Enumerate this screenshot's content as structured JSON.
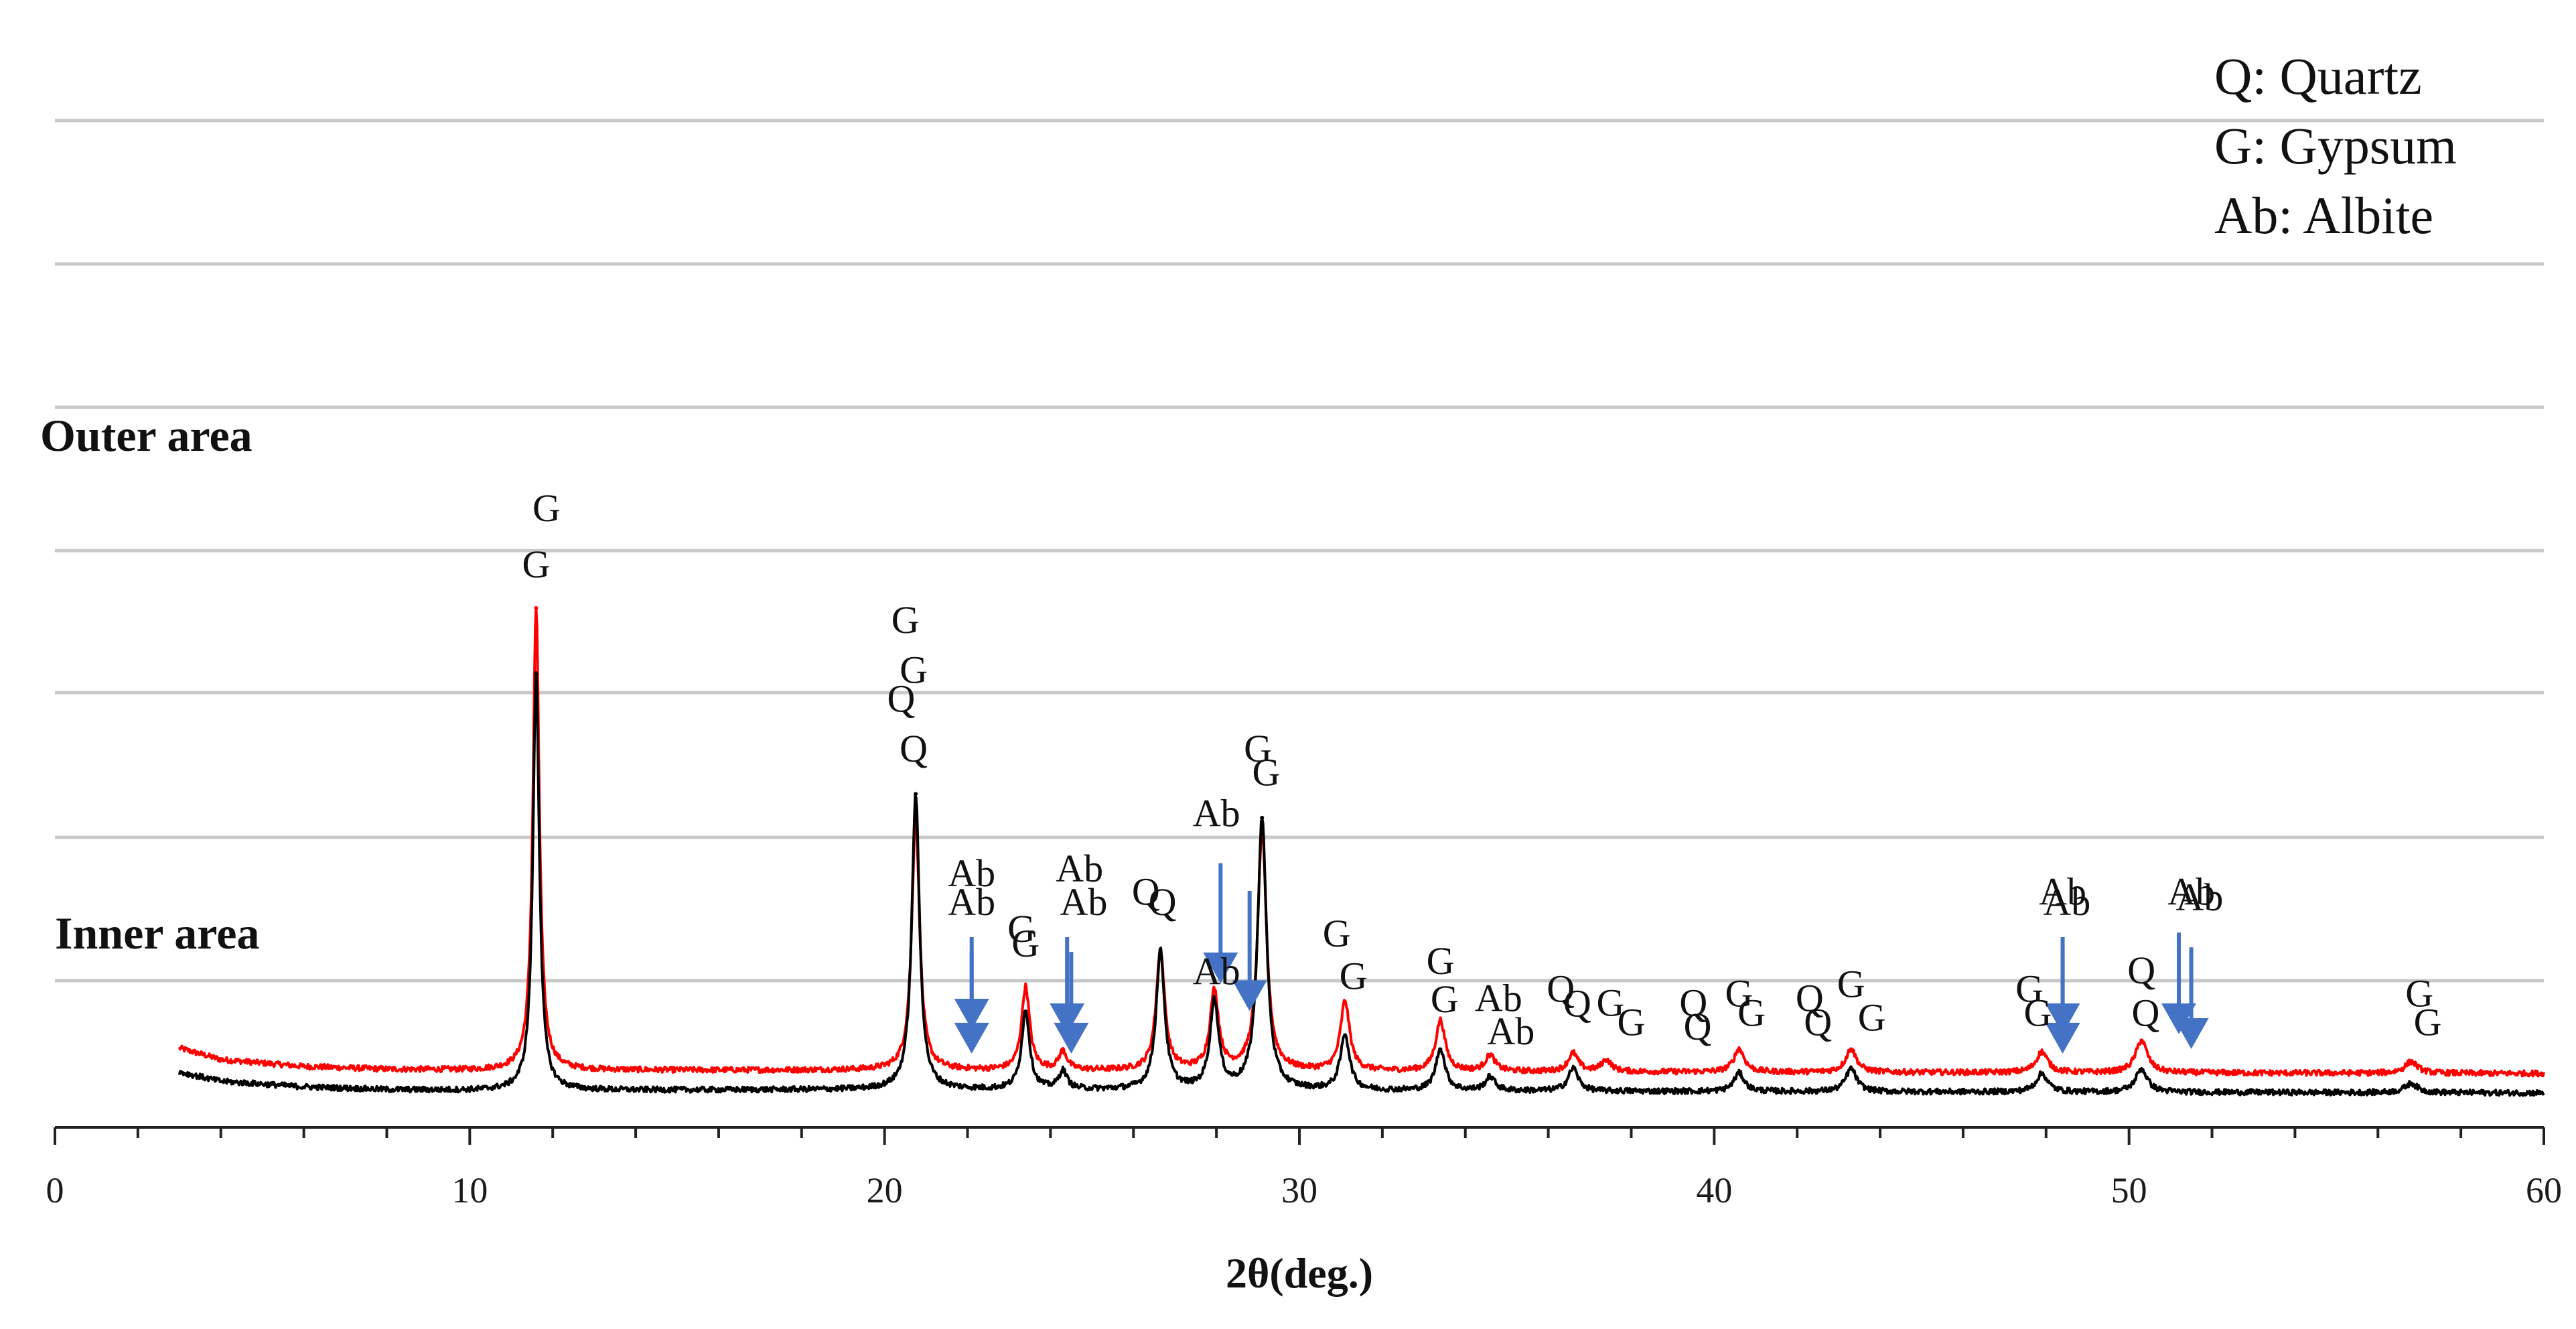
{
  "chart_data": {
    "type": "line",
    "title": "",
    "xlabel": "2θ(deg.)",
    "ylabel": "",
    "xlim": [
      0,
      60
    ],
    "x_ticks": [
      "0",
      "10",
      "20",
      "30",
      "40",
      "50",
      "60"
    ],
    "grid": true,
    "legend": [
      {
        "text": "Q: Quartz",
        "position": "top-right"
      },
      {
        "text": "G: Gypsum",
        "position": "top-right"
      },
      {
        "text": "Ab: Albite",
        "position": "top-right"
      }
    ],
    "series": [
      {
        "name": "Outer area",
        "color": "#ff0000",
        "offset": 1.0,
        "baseline": [
          [
            3,
            0.06
          ],
          [
            4,
            0.035
          ],
          [
            6,
            0.02
          ],
          [
            8,
            0.014
          ],
          [
            10,
            0.012
          ],
          [
            20,
            0.012
          ],
          [
            30,
            0.01
          ],
          [
            40,
            0.008
          ],
          [
            60,
            0.005
          ]
        ],
        "peaks": [
          {
            "x": 11.6,
            "height": 1.0
          },
          {
            "x": 20.75,
            "height": 0.55
          },
          {
            "x": 23.4,
            "height": 0.18
          },
          {
            "x": 24.3,
            "height": 0.04
          },
          {
            "x": 26.65,
            "height": 0.26
          },
          {
            "x": 27.95,
            "height": 0.17
          },
          {
            "x": 29.1,
            "height": 0.52
          },
          {
            "x": 31.1,
            "height": 0.15
          },
          {
            "x": 33.4,
            "height": 0.11
          },
          {
            "x": 34.6,
            "height": 0.035
          },
          {
            "x": 36.6,
            "height": 0.04
          },
          {
            "x": 37.4,
            "height": 0.025
          },
          {
            "x": 40.6,
            "height": 0.05
          },
          {
            "x": 43.3,
            "height": 0.05
          },
          {
            "x": 47.9,
            "height": 0.045
          },
          {
            "x": 50.3,
            "height": 0.07
          },
          {
            "x": 56.8,
            "height": 0.025
          }
        ],
        "annotations": [
          {
            "text": "G",
            "x": 11.85,
            "y": 1.2
          },
          {
            "text": "G",
            "x": 20.7,
            "y": 0.85
          },
          {
            "text": "Q",
            "x": 20.7,
            "y": 0.68
          },
          {
            "text": "Ab",
            "x": 22.1,
            "y": 0.41
          },
          {
            "text": "Ab",
            "x": 24.7,
            "y": 0.42
          },
          {
            "text": "G",
            "x": 23.3,
            "y": 0.29
          },
          {
            "text": "Q",
            "x": 26.3,
            "y": 0.37
          },
          {
            "text": "Ab",
            "x": 28.0,
            "y": 0.54
          },
          {
            "text": "G",
            "x": 29.0,
            "y": 0.68
          },
          {
            "text": "G",
            "x": 30.9,
            "y": 0.28
          },
          {
            "text": "G",
            "x": 33.4,
            "y": 0.22
          },
          {
            "text": "Ab",
            "x": 34.8,
            "y": 0.14
          },
          {
            "text": "Q",
            "x": 36.3,
            "y": 0.16
          },
          {
            "text": "G",
            "x": 37.5,
            "y": 0.13
          },
          {
            "text": "Q",
            "x": 39.5,
            "y": 0.13
          },
          {
            "text": "G",
            "x": 40.6,
            "y": 0.15
          },
          {
            "text": "Q",
            "x": 42.3,
            "y": 0.14
          },
          {
            "text": "G",
            "x": 43.3,
            "y": 0.17
          },
          {
            "text": "G",
            "x": 47.6,
            "y": 0.16
          },
          {
            "text": "Ab",
            "x": 48.4,
            "y": 0.37
          },
          {
            "text": "Q",
            "x": 50.3,
            "y": 0.2
          },
          {
            "text": "Ab",
            "x": 51.5,
            "y": 0.37
          },
          {
            "text": "G",
            "x": 57.0,
            "y": 0.15
          }
        ],
        "arrows": [
          {
            "x": 22.1,
            "from": 0.3,
            "to": 0.1
          },
          {
            "x": 24.4,
            "from": 0.3,
            "to": 0.09
          },
          {
            "x": 28.1,
            "from": 0.46,
            "to": 0.2
          },
          {
            "x": 28.8,
            "from": 0.4,
            "to": 0.14
          },
          {
            "x": 48.4,
            "from": 0.3,
            "to": 0.09
          },
          {
            "x": 51.2,
            "from": 0.31,
            "to": 0.09
          }
        ]
      },
      {
        "name": "Inner area",
        "color": "#000000",
        "offset": 0.0,
        "baseline": [
          [
            3,
            0.05
          ],
          [
            4,
            0.03
          ],
          [
            6,
            0.018
          ],
          [
            8,
            0.012
          ],
          [
            10,
            0.01
          ],
          [
            20,
            0.012
          ],
          [
            30,
            0.01
          ],
          [
            40,
            0.008
          ],
          [
            60,
            0.005
          ]
        ],
        "peaks": [
          {
            "x": 11.6,
            "height": 0.9
          },
          {
            "x": 20.75,
            "height": 0.64
          },
          {
            "x": 23.4,
            "height": 0.17
          },
          {
            "x": 24.3,
            "height": 0.04
          },
          {
            "x": 26.65,
            "height": 0.3
          },
          {
            "x": 27.95,
            "height": 0.19
          },
          {
            "x": 29.1,
            "height": 0.59
          },
          {
            "x": 31.1,
            "height": 0.12
          },
          {
            "x": 33.4,
            "height": 0.09
          },
          {
            "x": 34.6,
            "height": 0.03
          },
          {
            "x": 36.6,
            "height": 0.05
          },
          {
            "x": 40.6,
            "height": 0.04
          },
          {
            "x": 43.3,
            "height": 0.05
          },
          {
            "x": 47.9,
            "height": 0.04
          },
          {
            "x": 50.3,
            "height": 0.05
          },
          {
            "x": 56.8,
            "height": 0.02
          }
        ],
        "annotations": [
          {
            "text": "G",
            "x": 11.6,
            "y": 1.12
          },
          {
            "text": "G",
            "x": 20.5,
            "y": 1.0
          },
          {
            "text": "Q",
            "x": 20.4,
            "y": 0.83
          },
          {
            "text": "Ab",
            "x": 22.1,
            "y": 0.39
          },
          {
            "text": "G",
            "x": 23.4,
            "y": 0.3
          },
          {
            "text": "Ab",
            "x": 24.8,
            "y": 0.39
          },
          {
            "text": "Q",
            "x": 26.7,
            "y": 0.39
          },
          {
            "text": "Ab",
            "x": 28.0,
            "y": 0.24
          },
          {
            "text": "G",
            "x": 29.2,
            "y": 0.67
          },
          {
            "text": "G",
            "x": 31.3,
            "y": 0.23
          },
          {
            "text": "G",
            "x": 33.5,
            "y": 0.18
          },
          {
            "text": "Ab",
            "x": 35.1,
            "y": 0.11
          },
          {
            "text": "Q",
            "x": 36.7,
            "y": 0.17
          },
          {
            "text": "G",
            "x": 38.0,
            "y": 0.13
          },
          {
            "text": "Q",
            "x": 39.6,
            "y": 0.12
          },
          {
            "text": "G",
            "x": 40.9,
            "y": 0.15
          },
          {
            "text": "Q",
            "x": 42.5,
            "y": 0.13
          },
          {
            "text": "G",
            "x": 43.8,
            "y": 0.14
          },
          {
            "text": "G",
            "x": 47.8,
            "y": 0.15
          },
          {
            "text": "Ab",
            "x": 48.5,
            "y": 0.39
          },
          {
            "text": "Q",
            "x": 50.4,
            "y": 0.15
          },
          {
            "text": "Ab",
            "x": 51.7,
            "y": 0.4
          },
          {
            "text": "G",
            "x": 57.2,
            "y": 0.13
          }
        ],
        "arrows": [
          {
            "x": 22.1,
            "from": 0.31,
            "to": 0.09
          },
          {
            "x": 24.5,
            "from": 0.31,
            "to": 0.09
          },
          {
            "x": 48.4,
            "from": 0.3,
            "to": 0.09
          },
          {
            "x": 51.5,
            "from": 0.32,
            "to": 0.1
          }
        ]
      }
    ]
  }
}
